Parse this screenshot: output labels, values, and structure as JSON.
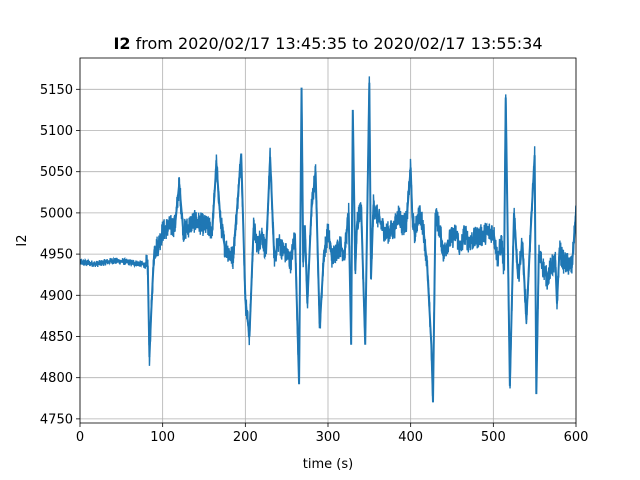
{
  "chart_data": {
    "type": "line",
    "title_bold": "I2",
    "title_rest": " from 2020/02/17 13:45:35 to 2020/02/17 13:55:34",
    "xlabel": "time (s)",
    "ylabel": "I2",
    "xlim": [
      0,
      600
    ],
    "ylim": [
      4745,
      5188
    ],
    "x_ticks": [
      0,
      100,
      200,
      300,
      400,
      500,
      600
    ],
    "y_ticks": [
      4750,
      4800,
      4850,
      4900,
      4950,
      5000,
      5050,
      5100,
      5150
    ],
    "grid": true,
    "colors": {
      "series": "#1f77b4",
      "grid": "#b0b0b0",
      "axes": "#000000"
    },
    "series": [
      {
        "x": [
          0,
          20,
          40,
          60,
          75,
          82,
          84,
          86,
          88,
          90,
          95,
          100,
          105,
          115,
          120,
          125,
          130,
          135,
          140,
          150,
          160,
          165,
          170,
          175,
          185,
          190,
          195,
          200,
          205,
          210,
          215,
          220,
          225,
          230,
          235,
          240,
          245,
          250,
          255,
          260,
          265,
          268,
          270,
          272,
          275,
          280,
          285,
          290,
          295,
          300,
          305,
          310,
          315,
          320,
          325,
          328,
          330,
          333,
          335,
          340,
          345,
          350,
          352,
          355,
          360,
          365,
          370,
          380,
          385,
          390,
          395,
          400,
          402,
          405,
          410,
          415,
          420,
          425,
          427,
          430,
          435,
          440,
          445,
          450,
          455,
          460,
          465,
          470,
          480,
          490,
          500,
          505,
          510,
          513,
          515,
          520,
          525,
          530,
          535,
          540,
          545,
          550,
          552,
          555,
          560,
          565,
          570,
          575,
          577,
          580,
          585,
          590,
          595,
          600
        ],
        "values": [
          4940,
          4938,
          4942,
          4940,
          4938,
          4935,
          4825,
          4875,
          4920,
          4955,
          4962,
          4978,
          4982,
          4985,
          5035,
          4978,
          4982,
          4988,
          4990,
          4985,
          4980,
          5060,
          4990,
          4960,
          4945,
          5005,
          5072,
          4895,
          4850,
          4982,
          4960,
          4975,
          4950,
          5068,
          4945,
          4965,
          4955,
          4950,
          4940,
          4975,
          4792,
          5152,
          4940,
          4985,
          4890,
          5005,
          5050,
          4860,
          4950,
          4978,
          4945,
          4955,
          4960,
          4950,
          5000,
          4840,
          5125,
          4930,
          4985,
          5010,
          4840,
          5158,
          4920,
          5010,
          4995,
          4985,
          4975,
          4980,
          5000,
          4985,
          4990,
          5055,
          4995,
          4975,
          5000,
          4985,
          4935,
          4840,
          4770,
          5000,
          4980,
          4950,
          4965,
          4970,
          4975,
          4955,
          4975,
          4965,
          4970,
          4975,
          4978,
          4945,
          4965,
          4930,
          5140,
          4790,
          5000,
          4920,
          4965,
          4870,
          4975,
          5070,
          4780,
          4950,
          4935,
          4920,
          4935,
          4940,
          4890,
          4955,
          4940,
          4938,
          4935,
          5000
        ]
      }
    ]
  }
}
